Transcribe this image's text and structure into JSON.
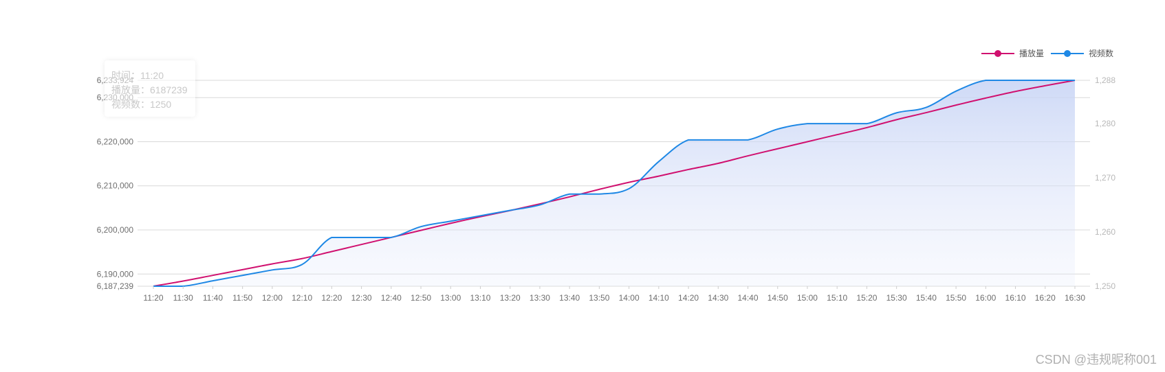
{
  "chart_data": {
    "type": "line",
    "x": [
      "11:20",
      "11:30",
      "11:40",
      "11:50",
      "12:00",
      "12:10",
      "12:20",
      "12:30",
      "12:40",
      "12:50",
      "13:00",
      "13:10",
      "13:20",
      "13:30",
      "13:40",
      "13:50",
      "14:00",
      "14:10",
      "14:20",
      "14:30",
      "14:40",
      "14:50",
      "15:00",
      "15:10",
      "15:20",
      "15:30",
      "15:40",
      "15:50",
      "16:00",
      "16:10",
      "16:20",
      "16:30"
    ],
    "series": [
      {
        "name": "播放量",
        "axis": "left",
        "color": "#d0106f",
        "values": [
          6187239,
          6188400,
          6189700,
          6191000,
          6192300,
          6193500,
          6195100,
          6196700,
          6198300,
          6199900,
          6201500,
          6203000,
          6204400,
          6205900,
          6207500,
          6209200,
          6210800,
          6212200,
          6213700,
          6215100,
          6216800,
          6218400,
          6220000,
          6221600,
          6223200,
          6225000,
          6226600,
          6228300,
          6229900,
          6231400,
          6232700,
          6233924
        ]
      },
      {
        "name": "视频数",
        "axis": "right",
        "color": "#1e88e5",
        "area": true,
        "values": [
          1250,
          1250,
          1251,
          1252,
          1253,
          1254,
          1259,
          1259,
          1259,
          1261,
          1262,
          1263,
          1264,
          1265,
          1267,
          1267,
          1268,
          1273,
          1277,
          1277,
          1277,
          1279,
          1280,
          1280,
          1280,
          1282,
          1283,
          1286,
          1288,
          1288,
          1288,
          1288
        ]
      }
    ],
    "y_left": {
      "min": 6187239,
      "max": 6233924,
      "ticks": [
        6187239,
        6190000,
        6200000,
        6210000,
        6220000,
        6230000,
        6233924
      ]
    },
    "y_right": {
      "min": 1250,
      "max": 1288,
      "ticks": [
        1250,
        1260,
        1270,
        1280,
        1288
      ]
    },
    "legend_position": "top-right",
    "grid": true
  },
  "tooltip": {
    "time_label": "时间：",
    "time_value": "11:20",
    "plays_label": "播放量：",
    "plays_value": "6187239",
    "videos_label": "视频数：",
    "videos_value": "1250"
  },
  "watermark": "CSDN @违规昵称001"
}
